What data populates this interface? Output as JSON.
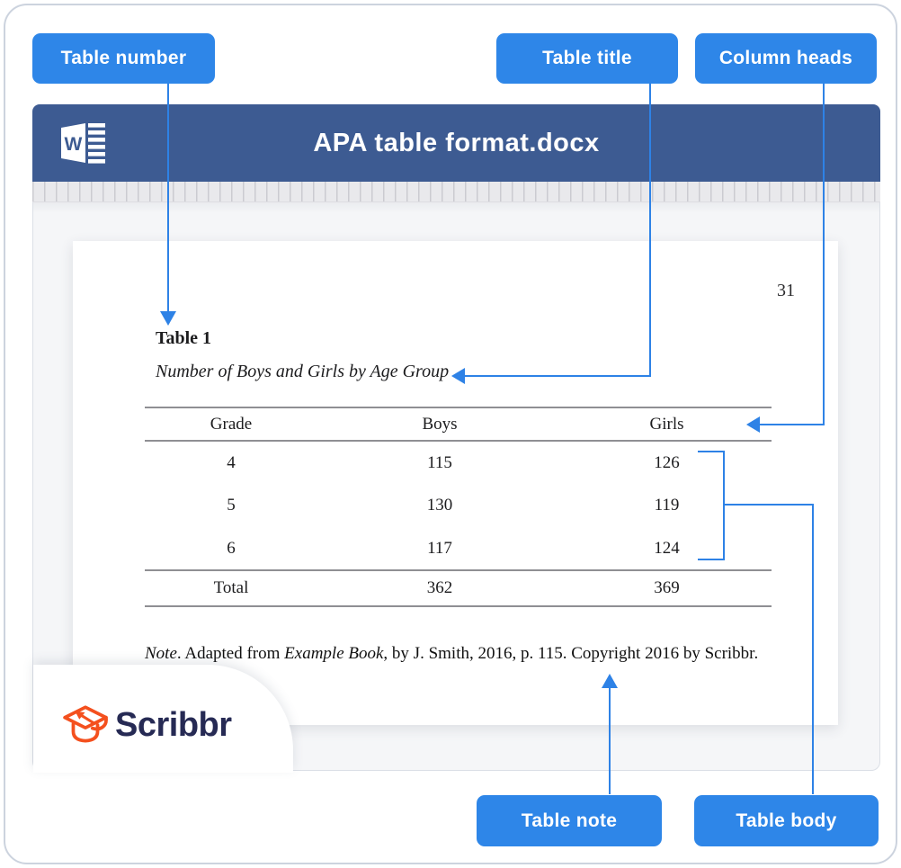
{
  "callouts": {
    "table_number": "Table number",
    "table_title": "Table title",
    "column_heads": "Column heads",
    "table_note": "Table note",
    "table_body": "Table body"
  },
  "window": {
    "title": "APA table format.docx"
  },
  "document": {
    "page_number": "31",
    "table_number": "Table 1",
    "table_title": "Number of Boys and Girls by Age Group",
    "table": {
      "headers": [
        "Grade",
        "Boys",
        "Girls"
      ],
      "rows": [
        [
          "4",
          "115",
          "126"
        ],
        [
          "5",
          "130",
          "119"
        ],
        [
          "6",
          "117",
          "124"
        ]
      ],
      "total_row": [
        "Total",
        "362",
        "369"
      ]
    },
    "note_segments": [
      {
        "text": "Note",
        "italic": true
      },
      {
        "text": ". Adapted from ",
        "italic": false
      },
      {
        "text": "Example Book",
        "italic": true
      },
      {
        "text": ", by J. Smith, 2016, p. 115. Copyright 2016 by Scribbr.",
        "italic": false
      }
    ]
  },
  "logo": {
    "text": "Scribbr"
  },
  "colors": {
    "callout_blue": "#2e86e8",
    "connector_blue": "#2e82e6",
    "titlebar_navy": "#3d5b92",
    "logo_navy": "#262a54",
    "logo_orange": "#f4501e",
    "window_gray": "#f5f6f8",
    "ruler_gray": "#e9e9ec"
  }
}
